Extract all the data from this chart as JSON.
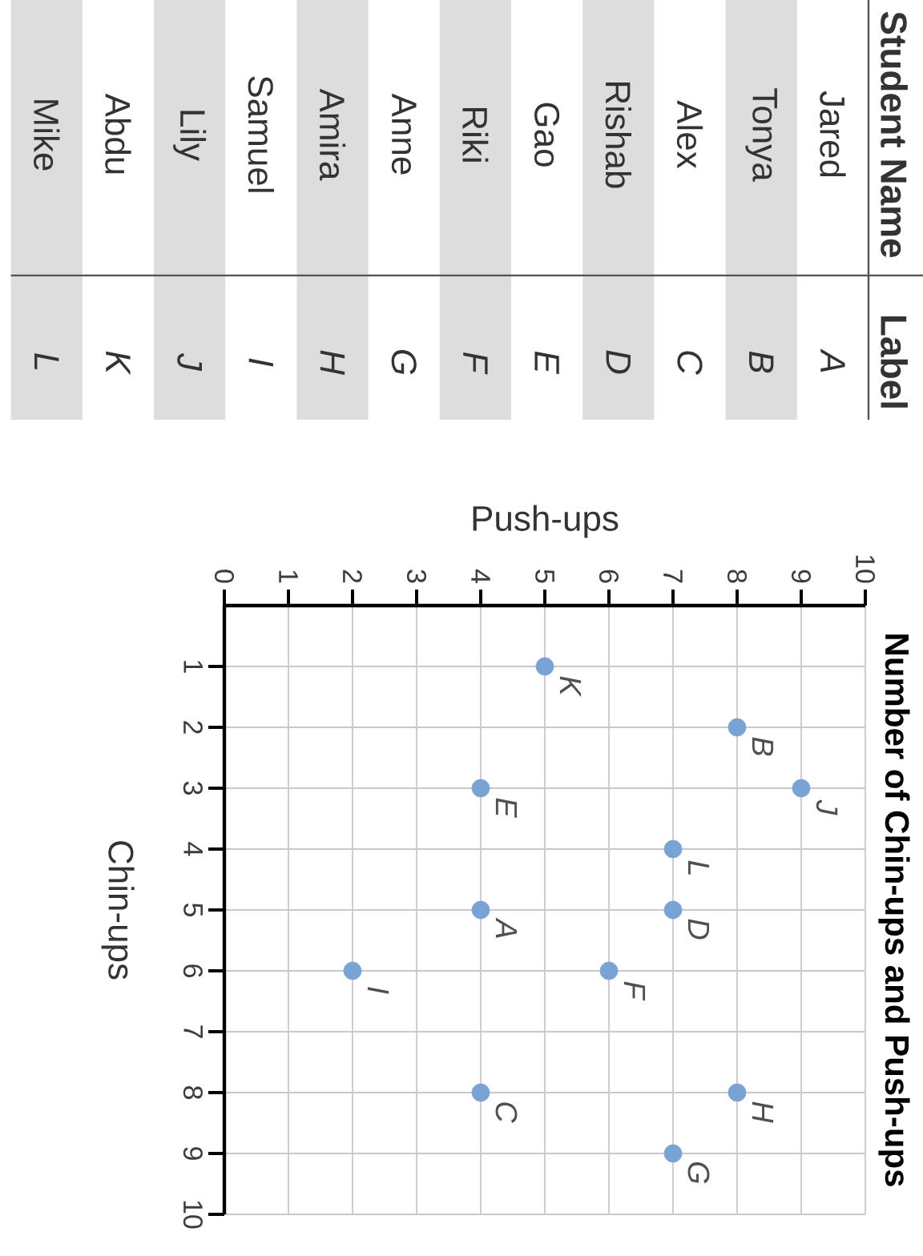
{
  "chart_data": [
    {
      "type": "other",
      "annotations": [
        "Student Name",
        "Label",
        "Jared",
        "A",
        "Tonya",
        "B",
        "Alex",
        "C",
        "Rishab",
        "D",
        "Gao",
        "E",
        "Riki",
        "F",
        "Anne",
        "G",
        "Amira",
        "H",
        "Samuel",
        "I",
        "Lily",
        "J",
        "Abdu",
        "K",
        "Mike",
        "L"
      ]
    },
    {
      "type": "scatter",
      "title": "Number of Chin-ups and Push-ups",
      "xlabel": "Push-ups",
      "ylabel": "Chin-ups",
      "x": [
        4,
        8,
        4,
        7,
        4,
        6,
        7,
        8,
        2,
        9,
        5,
        7
      ],
      "values": [
        5,
        2,
        8,
        5,
        3,
        6,
        9,
        8,
        6,
        3,
        1,
        4
      ],
      "color": "#78a3d4",
      "marker": "circle",
      "xlim": [
        0,
        10
      ],
      "ylim": [
        10,
        0
      ],
      "xticks": [
        0,
        1,
        2,
        3,
        4,
        5,
        6,
        7,
        8,
        9,
        10
      ],
      "yticks": [
        1,
        2,
        3,
        4,
        5,
        6,
        7,
        8,
        9,
        10
      ],
      "grid": true,
      "annotations": [
        {
          "text": "A",
          "x": 4,
          "y": 5
        },
        {
          "text": "B",
          "x": 8,
          "y": 2
        },
        {
          "text": "C",
          "x": 4,
          "y": 8
        },
        {
          "text": "D",
          "x": 7,
          "y": 5
        },
        {
          "text": "E",
          "x": 4,
          "y": 3
        },
        {
          "text": "F",
          "x": 6,
          "y": 6
        },
        {
          "text": "G",
          "x": 7,
          "y": 9
        },
        {
          "text": "H",
          "x": 8,
          "y": 8
        },
        {
          "text": "I",
          "x": 2,
          "y": 6
        },
        {
          "text": "J",
          "x": 9,
          "y": 3
        },
        {
          "text": "K",
          "x": 5,
          "y": 1
        },
        {
          "text": "L",
          "x": 7,
          "y": 4
        }
      ]
    }
  ]
}
